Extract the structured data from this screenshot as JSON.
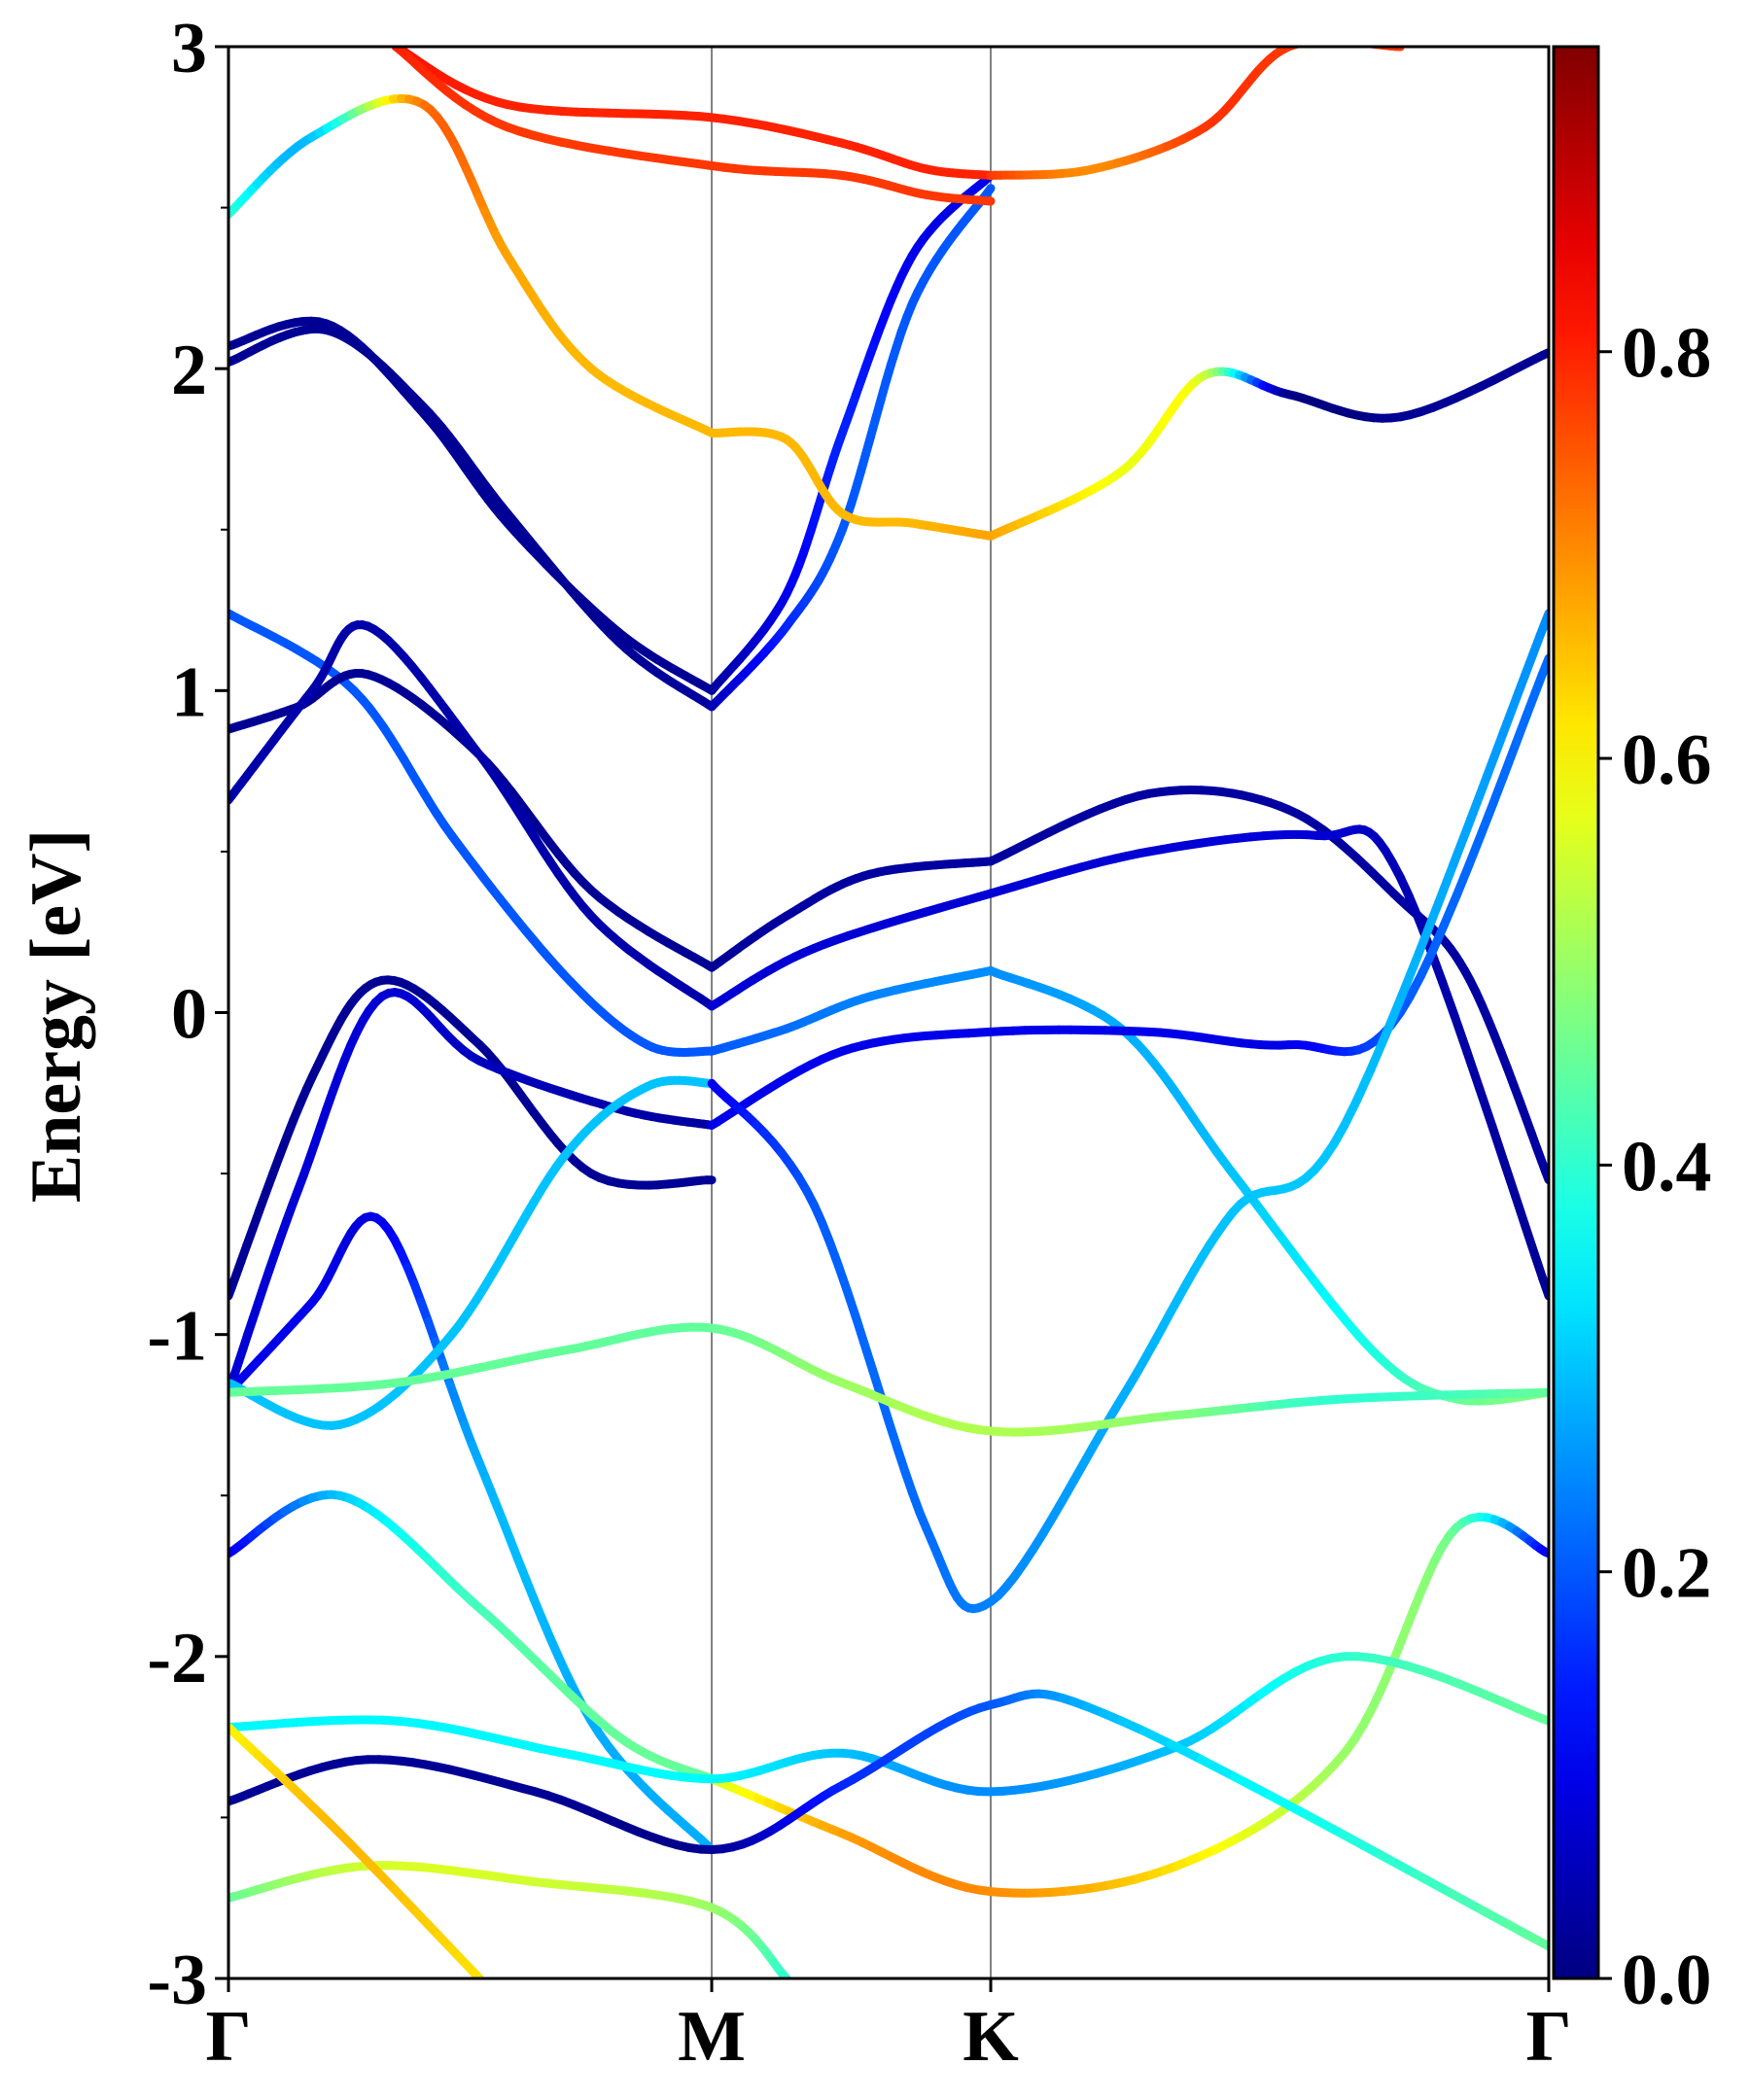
{
  "chart_data": {
    "type": "line",
    "title": "",
    "xlabel": "",
    "ylabel": "Energy [eV]",
    "ylim": [
      -3,
      3
    ],
    "ytick_labels": [
      "-3",
      "-2",
      "-1",
      "0",
      "1",
      "2",
      "3"
    ],
    "k_labels": [
      "Γ",
      "M",
      "K",
      "Γ"
    ],
    "k_positions": [
      0,
      1.732,
      2.732,
      4.732
    ],
    "colorbar": {
      "colormap": "jet",
      "min": 0.0,
      "max": 0.95,
      "tick_labels": [
        "0.0",
        "0.2",
        "0.4",
        "0.6",
        "0.8"
      ]
    },
    "series": [
      {
        "x": [
          0,
          0.35,
          0.7,
          1.0,
          1.4,
          1.732
        ],
        "y": [
          2.02,
          2.12,
          1.88,
          1.55,
          1.15,
          0.95
        ],
        "weight": [
          0.02,
          0.02,
          0.02,
          0.02,
          0.02,
          0.03
        ]
      },
      {
        "x": [
          0,
          0.35,
          0.7,
          1.0,
          1.4,
          1.732
        ],
        "y": [
          2.07,
          2.14,
          1.86,
          1.52,
          1.18,
          1.0
        ],
        "weight": [
          0.02,
          0.02,
          0.02,
          0.02,
          0.02,
          0.02
        ]
      },
      {
        "x": [
          1.732,
          2.0,
          2.2,
          2.45,
          2.732
        ],
        "y": [
          0.95,
          1.2,
          1.5,
          2.2,
          2.56
        ],
        "weight": [
          0.05,
          0.15,
          0.2,
          0.2,
          0.2
        ]
      },
      {
        "x": [
          1.732,
          2.0,
          2.2,
          2.45,
          2.732
        ],
        "y": [
          1.0,
          1.3,
          1.8,
          2.35,
          2.6
        ],
        "weight": [
          0.03,
          0.1,
          0.15,
          0.1,
          0.1
        ]
      },
      {
        "x": [
          0,
          0.3,
          0.7,
          1.0,
          1.3,
          1.732
        ],
        "y": [
          2.48,
          2.72,
          2.82,
          2.35,
          2.0,
          1.8
        ],
        "weight": [
          0.4,
          0.3,
          0.72,
          0.68,
          0.66,
          0.66
        ]
      },
      {
        "x": [
          1.732,
          2.0,
          2.2,
          2.45,
          2.732
        ],
        "y": [
          1.8,
          1.78,
          1.55,
          1.52,
          1.48
        ],
        "weight": [
          0.66,
          0.66,
          0.66,
          0.66,
          0.68
        ]
      },
      {
        "x": [
          2.732,
          3.2,
          3.5,
          3.8,
          4.2,
          4.732
        ],
        "y": [
          1.48,
          1.68,
          1.98,
          1.92,
          1.85,
          2.05
        ],
        "weight": [
          0.68,
          0.58,
          0.55,
          0.02,
          0.02,
          0.02
        ]
      },
      {
        "x": [
          0.6,
          1.0,
          1.732,
          2.2,
          2.5,
          2.732
        ],
        "y": [
          3.0,
          2.82,
          2.78,
          2.7,
          2.62,
          2.6
        ],
        "weight": [
          0.82,
          0.8,
          0.8,
          0.8,
          0.8,
          0.8
        ]
      },
      {
        "x": [
          0.6,
          1.0,
          1.732,
          2.2,
          2.5,
          2.732
        ],
        "y": [
          3.0,
          2.75,
          2.63,
          2.6,
          2.54,
          2.52
        ],
        "weight": [
          0.8,
          0.78,
          0.78,
          0.78,
          0.78,
          0.78
        ]
      },
      {
        "x": [
          2.732,
          3.1,
          3.5,
          3.8,
          4.2
        ],
        "y": [
          2.6,
          2.62,
          2.75,
          3.0,
          3.0
        ],
        "weight": [
          0.78,
          0.7,
          0.78,
          0.78,
          0.78
        ]
      },
      {
        "x": [
          0,
          0.45,
          0.8,
          1.2,
          1.5,
          1.732
        ],
        "y": [
          1.24,
          1.0,
          0.55,
          0.12,
          -0.1,
          -0.12
        ],
        "weight": [
          0.2,
          0.2,
          0.2,
          0.2,
          0.2,
          0.2
        ]
      },
      {
        "x": [
          1.732,
          2.0,
          2.3,
          2.732
        ],
        "y": [
          -0.12,
          -0.05,
          0.05,
          0.13
        ],
        "weight": [
          0.2,
          0.22,
          0.24,
          0.25
        ]
      },
      {
        "x": [
          2.732,
          3.2,
          3.6,
          4.1,
          4.4,
          4.732
        ],
        "y": [
          0.13,
          -0.05,
          -0.5,
          -1.05,
          -1.2,
          -1.18
        ],
        "weight": [
          0.25,
          0.28,
          0.3,
          0.38,
          0.45,
          0.48
        ]
      },
      {
        "x": [
          0,
          0.25,
          0.5,
          0.9,
          1.3,
          1.732
        ],
        "y": [
          0.88,
          0.95,
          1.05,
          0.8,
          0.38,
          0.14
        ],
        "weight": [
          0.02,
          0.02,
          0.02,
          0.02,
          0.02,
          0.02
        ]
      },
      {
        "x": [
          1.732,
          2.0,
          2.3,
          2.732
        ],
        "y": [
          0.14,
          0.3,
          0.43,
          0.47
        ],
        "weight": [
          0.02,
          0.03,
          0.03,
          0.03
        ]
      },
      {
        "x": [
          2.732,
          3.3,
          3.8,
          4.2,
          4.45,
          4.732
        ],
        "y": [
          0.47,
          0.68,
          0.63,
          0.35,
          0.1,
          -0.52
        ],
        "weight": [
          0.03,
          0.03,
          0.03,
          0.03,
          0.03,
          0.03
        ]
      },
      {
        "x": [
          0,
          0.3,
          0.5,
          0.9,
          1.3,
          1.732
        ],
        "y": [
          0.66,
          1.0,
          1.2,
          0.8,
          0.3,
          0.02
        ],
        "weight": [
          0.04,
          0.04,
          0.04,
          0.04,
          0.04,
          0.04
        ]
      },
      {
        "x": [
          1.732,
          2.1,
          2.732,
          3.3,
          3.9,
          4.2,
          4.732
        ],
        "y": [
          0.02,
          0.2,
          0.37,
          0.5,
          0.55,
          0.42,
          -0.88
        ],
        "weight": [
          0.08,
          0.08,
          0.08,
          0.08,
          0.08,
          0.05,
          0.02
        ]
      },
      {
        "x": [
          0,
          0.3,
          0.55,
          0.9,
          1.3,
          1.732
        ],
        "y": [
          -0.88,
          -0.2,
          0.1,
          -0.1,
          -0.5,
          -0.52
        ],
        "weight": [
          0.02,
          0.02,
          0.02,
          0.02,
          0.02,
          0.02
        ]
      },
      {
        "x": [
          0,
          0.25,
          0.55,
          0.9,
          1.4,
          1.732
        ],
        "y": [
          -1.18,
          -0.55,
          0.05,
          -0.15,
          -0.3,
          -0.35
        ],
        "weight": [
          0.08,
          0.08,
          0.08,
          0.06,
          0.04,
          0.03
        ]
      },
      {
        "x": [
          1.732,
          2.2,
          2.732,
          3.3,
          3.8,
          4.2,
          4.732
        ],
        "y": [
          -0.35,
          -0.12,
          -0.06,
          -0.06,
          -0.1,
          0.0,
          1.1
        ],
        "weight": [
          0.1,
          0.1,
          0.1,
          0.1,
          0.1,
          0.2,
          0.22
        ]
      },
      {
        "x": [
          0,
          0.3,
          0.55,
          0.9,
          1.3,
          1.732
        ],
        "y": [
          -1.18,
          -0.9,
          -0.65,
          -1.4,
          -2.2,
          -2.6
        ],
        "weight": [
          0.1,
          0.1,
          0.1,
          0.28,
          0.28,
          0.28
        ]
      },
      {
        "x": [
          0,
          0.4,
          0.8,
          1.2,
          1.5,
          1.732
        ],
        "y": [
          -1.15,
          -1.28,
          -1.0,
          -0.45,
          -0.23,
          -0.22
        ],
        "weight": [
          0.3,
          0.3,
          0.3,
          0.3,
          0.3,
          0.3
        ]
      },
      {
        "x": [
          1.732,
          2.1,
          2.5,
          2.732,
          3.2,
          3.6,
          4.0,
          4.732
        ],
        "y": [
          -0.22,
          -0.6,
          -1.6,
          -1.83,
          -1.2,
          -0.62,
          -0.35,
          1.24
        ],
        "weight": [
          0.1,
          0.2,
          0.22,
          0.24,
          0.28,
          0.3,
          0.3,
          0.25
        ]
      },
      {
        "x": [
          0,
          0.6,
          1.2,
          1.732,
          2.2,
          2.732,
          3.4,
          4.0,
          4.732
        ],
        "y": [
          -1.18,
          -1.15,
          -1.05,
          -0.98,
          -1.15,
          -1.3,
          -1.25,
          -1.2,
          -1.18
        ],
        "weight": [
          0.45,
          0.45,
          0.45,
          0.45,
          0.5,
          0.52,
          0.48,
          0.4,
          0.45
        ]
      },
      {
        "x": [
          0,
          0.4,
          0.9,
          1.4,
          1.732
        ],
        "y": [
          -1.68,
          -1.5,
          -1.85,
          -2.25,
          -2.38
        ],
        "weight": [
          0.1,
          0.3,
          0.42,
          0.45,
          0.45
        ]
      },
      {
        "x": [
          1.732,
          2.2,
          2.732,
          3.4,
          4.0,
          4.4,
          4.732
        ],
        "y": [
          -2.38,
          -2.55,
          -2.73,
          -2.65,
          -2.3,
          -1.6,
          -1.68
        ],
        "weight": [
          0.55,
          0.68,
          0.7,
          0.62,
          0.5,
          0.45,
          0.1
        ]
      },
      {
        "x": [
          0,
          0.6,
          1.2,
          1.732,
          2.2,
          2.732,
          3.4,
          4.0,
          4.732
        ],
        "y": [
          -2.22,
          -2.2,
          -2.3,
          -2.38,
          -2.3,
          -2.42,
          -2.28,
          -2.0,
          -2.2
        ],
        "weight": [
          0.35,
          0.35,
          0.35,
          0.35,
          0.3,
          0.25,
          0.3,
          0.4,
          0.45
        ]
      },
      {
        "x": [
          0,
          0.5,
          1.1,
          1.732,
          2.2,
          2.732,
          3.2,
          4.732
        ],
        "y": [
          -2.45,
          -2.32,
          -2.42,
          -2.6,
          -2.4,
          -2.15,
          -2.2,
          -2.9
        ],
        "weight": [
          0.02,
          0.02,
          0.02,
          0.02,
          0.15,
          0.2,
          0.3,
          0.45
        ]
      },
      {
        "x": [
          0,
          0.5,
          1.1,
          1.732,
          2.0
        ],
        "y": [
          -2.75,
          -2.65,
          -2.7,
          -2.78,
          -3.0
        ],
        "weight": [
          0.45,
          0.55,
          0.55,
          0.5,
          0.4
        ]
      },
      {
        "x": [
          0,
          0.4,
          0.9
        ],
        "y": [
          -2.22,
          -2.55,
          -3.0
        ],
        "weight": [
          0.6,
          0.66,
          0.62
        ]
      }
    ]
  }
}
